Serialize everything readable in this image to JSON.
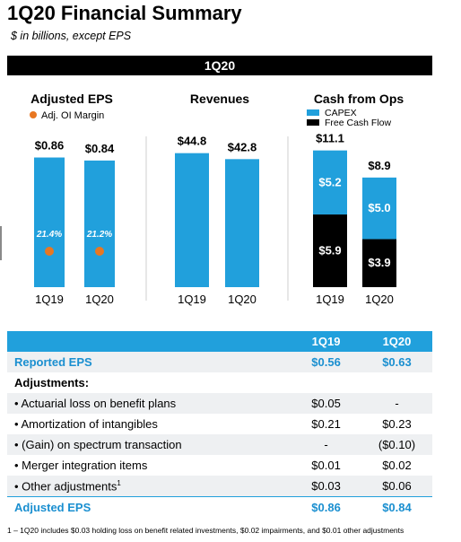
{
  "title": "1Q20 Financial Summary",
  "subtitle": "$ in billions, except EPS",
  "banner": "1Q20",
  "colors": {
    "blue": "#21a0dc",
    "black": "#000000",
    "orange": "#e87722"
  },
  "chart_data": [
    {
      "type": "bar",
      "title": "Adjusted EPS",
      "categories": [
        "1Q19",
        "1Q20"
      ],
      "values": [
        0.86,
        0.84
      ],
      "value_labels": [
        "$0.86",
        "$0.84"
      ],
      "legend": [
        {
          "name": "Adj. OI Margin",
          "marker": "orange-circle"
        }
      ],
      "overlay": {
        "name": "Adj. OI Margin",
        "labels": [
          "21.4%",
          "21.2%"
        ],
        "values": [
          21.4,
          21.2
        ]
      },
      "ylim": [
        0,
        1.25
      ]
    },
    {
      "type": "bar",
      "title": "Revenues",
      "categories": [
        "1Q19",
        "1Q20"
      ],
      "values": [
        44.8,
        42.8
      ],
      "value_labels": [
        "$44.8",
        "$42.8"
      ],
      "ylim": [
        0,
        63
      ]
    },
    {
      "type": "bar",
      "stacked": true,
      "title": "Cash from Ops",
      "categories": [
        "1Q19",
        "1Q20"
      ],
      "totals": [
        11.1,
        8.9
      ],
      "total_labels": [
        "$11.1",
        "$8.9"
      ],
      "series": [
        {
          "name": "Free Cash Flow",
          "values": [
            5.9,
            3.9
          ],
          "labels": [
            "$5.9",
            "$3.9"
          ]
        },
        {
          "name": "CAPEX",
          "values": [
            5.2,
            5.0
          ],
          "labels": [
            "$5.2",
            "$5.0"
          ]
        }
      ],
      "legend": [
        "CAPEX",
        "Free Cash Flow"
      ],
      "ylim": [
        0,
        15.3
      ]
    }
  ],
  "table": {
    "headers": [
      "",
      "1Q19",
      "1Q20"
    ],
    "rows": [
      {
        "label": "Reported EPS",
        "v1": "$0.56",
        "v2": "$0.63"
      },
      {
        "label": "Adjustments:",
        "v1": "",
        "v2": ""
      },
      {
        "label": "• Actuarial loss on benefit plans",
        "v1": "$0.05",
        "v2": "-"
      },
      {
        "label": "• Amortization of intangibles",
        "v1": "$0.21",
        "v2": "$0.23"
      },
      {
        "label": "• (Gain) on spectrum transaction",
        "v1": "-",
        "v2": "($0.10)"
      },
      {
        "label": "• Merger integration items",
        "v1": "$0.01",
        "v2": "$0.02"
      },
      {
        "label": "• Other adjustments",
        "sup": "1",
        "v1": "$0.03",
        "v2": "$0.06"
      },
      {
        "label": "Adjusted EPS",
        "v1": "$0.86",
        "v2": "$0.84"
      }
    ]
  },
  "footnote": "1 – 1Q20 includes $0.03 holding loss on benefit related investments, $0.02 impairments, and $0.01 other adjustments"
}
